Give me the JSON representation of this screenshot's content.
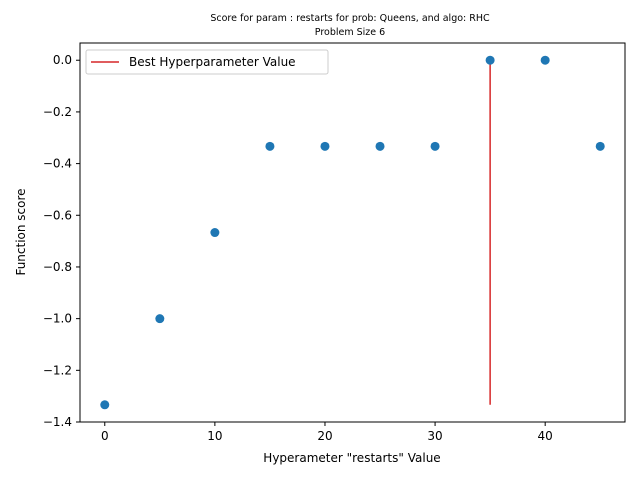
{
  "chart_data": {
    "type": "scatter",
    "title": "Score for param : restarts for prob: Queens, and algo: RHC",
    "subtitle": "Problem Size 6",
    "xlabel": "Hyperameter \"restarts\" Value",
    "ylabel": "Function score",
    "xlim": [
      -2.25,
      47.25
    ],
    "ylim": [
      -1.4,
      0.0667
    ],
    "xticks": [
      0,
      10,
      20,
      30,
      40
    ],
    "yticks": [
      -1.4,
      -1.2,
      -1.0,
      -0.8,
      -0.6,
      -0.4,
      -0.2,
      0.0
    ],
    "xtick_labels": [
      "0",
      "10",
      "20",
      "30",
      "40"
    ],
    "ytick_labels": [
      "−1.4",
      "−1.2",
      "−1.0",
      "−0.8",
      "−0.6",
      "−0.4",
      "−0.2",
      "0.0"
    ],
    "grid": false,
    "legend_position": "top-left",
    "series": [
      {
        "x": [
          0,
          5,
          10,
          15,
          20,
          25,
          30,
          35,
          40,
          45
        ],
        "y": [
          -1.3333,
          -1.0,
          -0.6667,
          -0.3333,
          -0.3333,
          -0.3333,
          -0.3333,
          0.0,
          0.0,
          -0.3333
        ],
        "color": "#1f77b4"
      }
    ],
    "vline": {
      "name": "Best Hyperparameter Value",
      "x": 35,
      "ymin": -1.3333,
      "ymax": 0.0,
      "color": "#d62728"
    }
  }
}
